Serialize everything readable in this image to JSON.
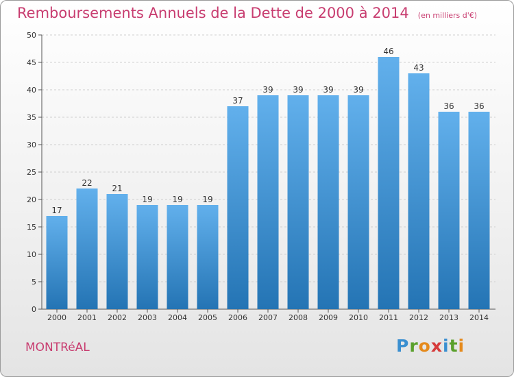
{
  "header": {
    "title": "Remboursements Annuels de la Dette de 2000 à 2014",
    "unit": "(en milliers d'€)"
  },
  "footer": {
    "commune": "MONTRéAL",
    "logo": {
      "text": "Proxiti",
      "letter_colors": [
        "#3a8fd0",
        "#5aa02c",
        "#e58a1c",
        "#d63b3b",
        "#3a8fd0",
        "#5aa02c",
        "#e58a1c"
      ]
    }
  },
  "colors": {
    "accent": "#c83d70",
    "bar_top": "#62b0ec",
    "bar_bottom": "#2474b4",
    "grid": "#cfcfcf",
    "axis_text": "#333333"
  },
  "chart_data": {
    "type": "bar",
    "categories": [
      "2000",
      "2001",
      "2002",
      "2003",
      "2004",
      "2005",
      "2006",
      "2007",
      "2008",
      "2009",
      "2010",
      "2011",
      "2012",
      "2013",
      "2014"
    ],
    "values": [
      17,
      22,
      21,
      19,
      19,
      19,
      37,
      39,
      39,
      39,
      39,
      46,
      43,
      36,
      36
    ],
    "ylim": [
      0,
      50
    ],
    "yticks": [
      0,
      5,
      10,
      15,
      20,
      25,
      30,
      35,
      40,
      45,
      50
    ],
    "grid": true,
    "data_labels": true
  }
}
